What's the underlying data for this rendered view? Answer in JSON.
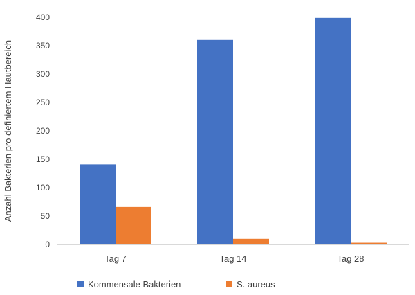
{
  "chart_data": {
    "type": "bar",
    "title": "",
    "xlabel": "",
    "ylabel": "Anzahl Bakterien pro definiertem Hautbereich",
    "categories": [
      "Tag 7",
      "Tag 14",
      "Tag 28"
    ],
    "ylim": [
      0,
      400
    ],
    "yticks": [
      0,
      50,
      100,
      150,
      200,
      250,
      300,
      350,
      400
    ],
    "grid": false,
    "legend_position": "bottom",
    "series": [
      {
        "name": "Kommensale Bakterien",
        "color": "#4472C4",
        "values": [
          141,
          360,
          399
        ]
      },
      {
        "name": "S. aureus",
        "color": "#ED7D31",
        "values": [
          66,
          10,
          3
        ]
      }
    ]
  }
}
